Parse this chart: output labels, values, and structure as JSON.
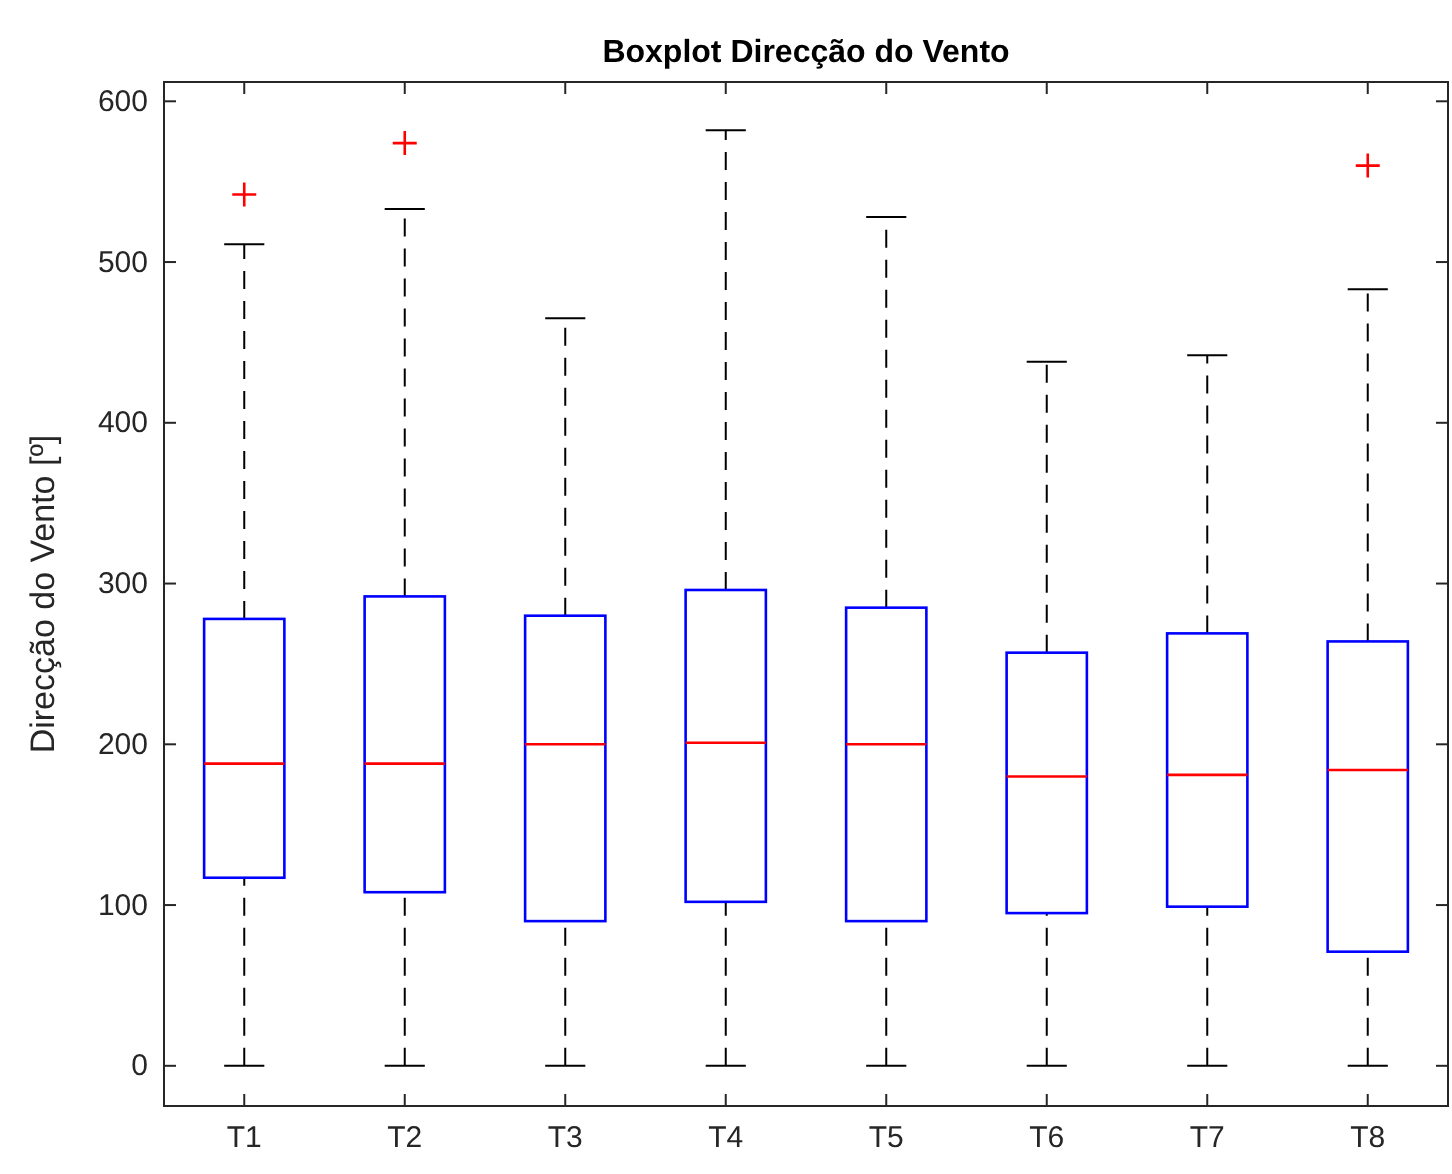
{
  "chart_data": {
    "type": "box",
    "title": "Boxplot Direcção do Vento",
    "ylabel": "Direcção do Vento [º]",
    "categories": [
      "T1",
      "T2",
      "T3",
      "T4",
      "T5",
      "T6",
      "T7",
      "T8"
    ],
    "boxes": [
      {
        "low": 0,
        "q1": 117,
        "median": 188,
        "q3": 278,
        "high": 511,
        "outliers": [
          542
        ]
      },
      {
        "low": 0,
        "q1": 108,
        "median": 188,
        "q3": 292,
        "high": 533,
        "outliers": [
          574
        ]
      },
      {
        "low": 0,
        "q1": 90,
        "median": 200,
        "q3": 280,
        "high": 465
      },
      {
        "low": 0,
        "q1": 102,
        "median": 201,
        "q3": 296,
        "high": 582
      },
      {
        "low": 0,
        "q1": 90,
        "median": 200,
        "q3": 285,
        "high": 528
      },
      {
        "low": 0,
        "q1": 95,
        "median": 180,
        "q3": 257,
        "high": 438
      },
      {
        "low": 0,
        "q1": 99,
        "median": 181,
        "q3": 269,
        "high": 442
      },
      {
        "low": 0,
        "q1": 71,
        "median": 184,
        "q3": 264,
        "high": 483,
        "outliers": [
          560
        ]
      }
    ],
    "color": "#0000ff",
    "ylim": [
      -25,
      612
    ],
    "yticks": [
      0,
      100,
      200,
      300,
      400,
      500,
      600
    ],
    "grid": false,
    "marker": "cross"
  }
}
